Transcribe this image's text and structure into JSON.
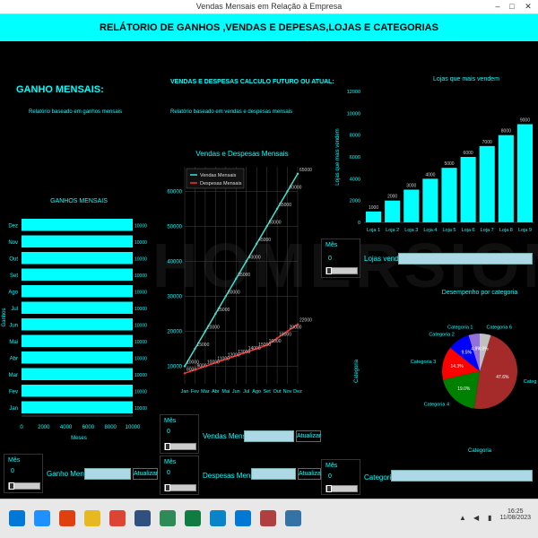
{
  "window": {
    "title": "Vendas Mensais em Relação à Empresa",
    "header": "RELÁTORIO DE GANHOS ,VENDAS E DEPESAS,LOJAS E CATEGORIAS"
  },
  "left": {
    "section_title": "GANHO MENSAIS:",
    "subtitle": "Relatório baseado em ganhos mensais",
    "ganho_label": "Ganho Mensal:",
    "atualizar": "Atualizar",
    "mes_label": "Mês",
    "mes_value": "0"
  },
  "middle": {
    "section_title": "VENDAS E DESPESAS CALCULO FUTURO OU ATUAL:",
    "subtitle": "Relatório baseado em vendas e despesas mensais",
    "vendas_label": "Vendas Mensais:",
    "despesas_label": "Despesas Mensais:",
    "atualizar": "Atualizar",
    "mes_label": "Mês",
    "mes_value": "0"
  },
  "right": {
    "lojas_label": "Lojas vendas:",
    "categoria_label": "Categoria:",
    "mes_label": "Mês",
    "mes_value": "0"
  },
  "chart_data": [
    {
      "type": "bar",
      "orientation": "horizontal",
      "title": "GANHOS MENSAIS",
      "xlabel": "Meses",
      "ylabel": "Ganhos",
      "categories": [
        "Jan",
        "Fev",
        "Mar",
        "Abr",
        "Mai",
        "Jun",
        "Jul",
        "Ago",
        "Set",
        "Out",
        "Nov",
        "Dez"
      ],
      "values": [
        10000,
        10000,
        10000,
        10000,
        10000,
        10000,
        10000,
        10000,
        10000,
        10000,
        10000,
        10000
      ],
      "value_labels": [
        "10000",
        "10000",
        "10000",
        "10000",
        "10000",
        "10000",
        "10000",
        "10000",
        "10000",
        "10000",
        "10000",
        "10000"
      ],
      "xlim": [
        0,
        10000
      ],
      "xticks": [
        "0",
        "2000",
        "4000",
        "6000",
        "8000",
        "10000"
      ],
      "color": "#00ffff"
    },
    {
      "type": "line",
      "title": "Vendas e Despesas Mensais",
      "categories": [
        "Jan",
        "Fev",
        "Mar",
        "Abr",
        "Mai",
        "Jun",
        "Jul",
        "Ago",
        "Set",
        "Out",
        "Nov",
        "Dez"
      ],
      "series": [
        {
          "name": "Vendas Mensais",
          "color": "#40e0d0",
          "values": [
            10000,
            15000,
            20000,
            25000,
            30000,
            35000,
            40000,
            45000,
            50000,
            55000,
            60000,
            65000
          ]
        },
        {
          "name": "Despesas Mensais",
          "color": "#ff3030",
          "values": [
            8000,
            9000,
            10000,
            11000,
            12000,
            13000,
            14000,
            15000,
            16000,
            18000,
            20000,
            22000
          ]
        }
      ],
      "ylim": [
        5000,
        67000
      ],
      "yticks": [
        10000,
        20000,
        30000,
        40000,
        50000,
        60000
      ],
      "ytick_labels": [
        "10000",
        "20000",
        "30000",
        "40000",
        "50000",
        "60000"
      ],
      "grid": true,
      "legend": "top-left"
    },
    {
      "type": "bar",
      "title": "Lojas que mais vendem",
      "ylabel": "Lojas que mais vendem",
      "categories": [
        "Loja 1",
        "Loja 2",
        "Loja 3",
        "Loja 4",
        "Loja 5",
        "Loja 6",
        "Loja 7",
        "Loja 8",
        "Loja 9"
      ],
      "values": [
        1000,
        2000,
        3000,
        4000,
        5000,
        6000,
        7000,
        8000,
        9000
      ],
      "value_labels": [
        "1000",
        "2000",
        "3000",
        "4000",
        "5000",
        "6000",
        "7000",
        "8000",
        "9000"
      ],
      "ylim": [
        0,
        12000
      ],
      "yticks": [
        0,
        2000,
        4000,
        6000,
        8000,
        10000,
        12000
      ],
      "ytick_labels": [
        "0",
        "2000",
        "4000",
        "6000",
        "8000",
        "10000",
        "12000"
      ],
      "color": "#00ffff"
    },
    {
      "type": "pie",
      "title": "Desempenho por categoria",
      "ylabel": "Categoria",
      "xlabel": "Categoria",
      "slices": [
        {
          "label": "Categ",
          "value": 47.6,
          "pct": "47.6%",
          "color": "#a52a2a"
        },
        {
          "label": "Categoria 4",
          "value": 19.0,
          "pct": "19.0%",
          "color": "#008000"
        },
        {
          "label": "Categoria 3",
          "value": 14.3,
          "pct": "14.3%",
          "color": "#ff0000"
        },
        {
          "label": "Categoria 2",
          "value": 9.5,
          "pct": "9.5%",
          "color": "#0000ff"
        },
        {
          "label": "Categoria 1",
          "value": 4.8,
          "pct": "4.8%",
          "color": "#9370db"
        },
        {
          "label": "Categoria 6",
          "value": 4.8,
          "pct": "4.8%",
          "color": "#c0c0c0"
        }
      ]
    }
  ],
  "taskbar": {
    "time": "16:25",
    "date": "11/08/2023",
    "apps": [
      {
        "icon": "windows-start-icon",
        "color": "#0078d7"
      },
      {
        "icon": "internet-explorer-icon",
        "color": "#1e90ff"
      },
      {
        "icon": "office-icon",
        "color": "#e04010"
      },
      {
        "icon": "file-explorer-icon",
        "color": "#e8b820"
      },
      {
        "icon": "chrome-icon",
        "color": "#dd4433"
      },
      {
        "icon": "settings-icon",
        "color": "#305080"
      },
      {
        "icon": "store-icon",
        "color": "#2e8b57"
      },
      {
        "icon": "excel-icon",
        "color": "#107c41"
      },
      {
        "icon": "edge-icon",
        "color": "#0a84c8"
      },
      {
        "icon": "vscode-icon",
        "color": "#0078d4"
      },
      {
        "icon": "snipping-icon",
        "color": "#b04040"
      },
      {
        "icon": "python-icon",
        "color": "#3572a5"
      }
    ]
  }
}
